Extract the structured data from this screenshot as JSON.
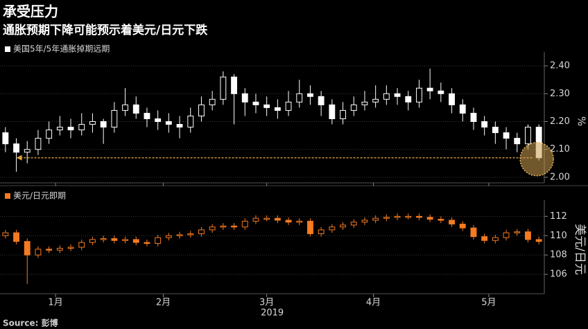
{
  "title": "承受压力",
  "subtitle": "通胀预期下降可能预示着美元/日元下跌",
  "source": "Source: 彭博",
  "chart_data": [
    {
      "type": "candlestick",
      "name": "美国5年/5年通胀掉期远期",
      "color": "#ffffff",
      "ylabel": "%",
      "x": [
        0,
        1,
        2,
        3,
        4,
        5,
        6,
        7,
        8,
        9,
        10,
        11,
        12,
        13,
        14,
        15,
        16,
        17,
        18,
        19,
        20,
        21,
        22,
        23,
        24,
        25,
        26,
        27,
        28,
        29,
        30,
        31,
        32,
        33,
        34,
        35,
        36,
        37,
        38,
        39,
        40,
        41,
        42,
        43,
        44,
        45,
        46,
        47,
        48,
        49
      ],
      "open": [
        2.16,
        2.12,
        2.09,
        2.1,
        2.14,
        2.17,
        2.18,
        2.17,
        2.19,
        2.2,
        2.18,
        2.24,
        2.26,
        2.23,
        2.21,
        2.2,
        2.19,
        2.18,
        2.22,
        2.26,
        2.28,
        2.36,
        2.3,
        2.27,
        2.26,
        2.25,
        2.24,
        2.27,
        2.3,
        2.29,
        2.26,
        2.21,
        2.24,
        2.26,
        2.27,
        2.28,
        2.3,
        2.29,
        2.27,
        2.32,
        2.31,
        2.3,
        2.26,
        2.23,
        2.2,
        2.18,
        2.16,
        2.14,
        2.12,
        2.18
      ],
      "high": [
        2.18,
        2.14,
        2.13,
        2.17,
        2.2,
        2.22,
        2.21,
        2.23,
        2.23,
        2.21,
        2.27,
        2.32,
        2.29,
        2.25,
        2.24,
        2.23,
        2.22,
        2.25,
        2.29,
        2.31,
        2.38,
        2.37,
        2.32,
        2.3,
        2.29,
        2.28,
        2.31,
        2.35,
        2.33,
        2.31,
        2.28,
        2.27,
        2.29,
        2.31,
        2.33,
        2.33,
        2.32,
        2.31,
        2.35,
        2.39,
        2.34,
        2.32,
        2.28,
        2.25,
        2.22,
        2.2,
        2.18,
        2.16,
        2.19,
        2.19
      ],
      "low": [
        2.09,
        2.02,
        2.05,
        2.08,
        2.12,
        2.15,
        2.14,
        2.15,
        2.16,
        2.12,
        2.16,
        2.22,
        2.21,
        2.18,
        2.17,
        2.16,
        2.14,
        2.16,
        2.2,
        2.24,
        2.26,
        2.19,
        2.22,
        2.23,
        2.22,
        2.21,
        2.22,
        2.25,
        2.26,
        2.22,
        2.19,
        2.19,
        2.22,
        2.24,
        2.25,
        2.26,
        2.26,
        2.24,
        2.25,
        2.28,
        2.27,
        2.23,
        2.2,
        2.17,
        2.15,
        2.12,
        2.1,
        2.09,
        2.1,
        2.06
      ],
      "close": [
        2.12,
        2.09,
        2.1,
        2.14,
        2.17,
        2.18,
        2.17,
        2.19,
        2.2,
        2.18,
        2.24,
        2.26,
        2.23,
        2.21,
        2.2,
        2.19,
        2.18,
        2.22,
        2.26,
        2.28,
        2.36,
        2.3,
        2.27,
        2.26,
        2.25,
        2.24,
        2.27,
        2.3,
        2.29,
        2.26,
        2.21,
        2.24,
        2.26,
        2.27,
        2.28,
        2.3,
        2.29,
        2.27,
        2.32,
        2.31,
        2.3,
        2.26,
        2.23,
        2.2,
        2.18,
        2.16,
        2.14,
        2.12,
        2.18,
        2.07
      ],
      "xlim": [
        -0.5,
        49.5
      ],
      "ylim": [
        1.98,
        2.43
      ],
      "yticks": [
        {
          "value": 2.0,
          "label": "2.00"
        },
        {
          "value": 2.1,
          "label": "2.10"
        },
        {
          "value": 2.2,
          "label": "2.20"
        },
        {
          "value": 2.3,
          "label": "2.30"
        },
        {
          "value": 2.4,
          "label": "2.40"
        }
      ],
      "grid": true
    },
    {
      "type": "candlestick",
      "name": "美元/日元即期",
      "color": "#f47b20",
      "ylabel": "美元/日元",
      "xlabel": "2019",
      "x": [
        0,
        1,
        2,
        3,
        4,
        5,
        6,
        7,
        8,
        9,
        10,
        11,
        12,
        13,
        14,
        15,
        16,
        17,
        18,
        19,
        20,
        21,
        22,
        23,
        24,
        25,
        26,
        27,
        28,
        29,
        30,
        31,
        32,
        33,
        34,
        35,
        36,
        37,
        38,
        39,
        40,
        41,
        42,
        43,
        44,
        45,
        46,
        47,
        48,
        49
      ],
      "open": [
        110.0,
        110.3,
        109.4,
        108.0,
        108.6,
        108.5,
        108.7,
        108.8,
        109.3,
        109.6,
        109.7,
        109.5,
        109.6,
        109.3,
        109.2,
        109.8,
        110.0,
        110.1,
        110.2,
        110.6,
        110.9,
        111.0,
        110.9,
        111.5,
        111.8,
        111.8,
        111.6,
        111.4,
        111.5,
        110.2,
        110.6,
        110.9,
        111.1,
        111.4,
        111.6,
        111.8,
        111.9,
        112.0,
        112.0,
        111.9,
        111.7,
        111.6,
        111.2,
        110.8,
        109.9,
        109.5,
        109.8,
        110.3,
        110.4,
        109.6
      ],
      "high": [
        110.6,
        110.6,
        109.7,
        108.9,
        108.9,
        109.0,
        109.1,
        109.6,
        109.9,
        110.0,
        110.0,
        109.9,
        109.9,
        109.6,
        110.1,
        110.3,
        110.4,
        110.5,
        110.9,
        111.2,
        111.3,
        111.3,
        111.8,
        112.1,
        112.1,
        112.1,
        111.9,
        111.8,
        111.8,
        110.9,
        111.2,
        111.4,
        111.7,
        111.9,
        112.1,
        112.2,
        112.3,
        112.3,
        112.3,
        112.2,
        112.0,
        111.9,
        111.5,
        111.1,
        110.2,
        110.1,
        110.6,
        110.7,
        110.7,
        109.9
      ],
      "low": [
        109.7,
        109.1,
        105.0,
        107.7,
        108.2,
        108.2,
        108.4,
        108.5,
        109.0,
        109.3,
        109.2,
        109.2,
        109.0,
        108.9,
        108.9,
        109.5,
        109.7,
        109.8,
        109.9,
        110.3,
        110.6,
        110.6,
        110.6,
        111.2,
        111.5,
        111.3,
        111.1,
        111.1,
        109.9,
        109.9,
        110.3,
        110.6,
        110.8,
        111.1,
        111.3,
        111.5,
        111.6,
        111.7,
        111.6,
        111.4,
        111.3,
        110.9,
        110.5,
        109.6,
        109.2,
        109.2,
        109.5,
        110.0,
        109.3,
        109.1
      ],
      "close": [
        110.3,
        109.4,
        108.0,
        108.6,
        108.5,
        108.7,
        108.8,
        109.3,
        109.6,
        109.7,
        109.5,
        109.6,
        109.3,
        109.2,
        109.8,
        110.0,
        110.1,
        110.2,
        110.6,
        110.9,
        111.0,
        110.9,
        111.5,
        111.8,
        111.8,
        111.6,
        111.4,
        111.5,
        110.2,
        110.6,
        110.9,
        111.1,
        111.4,
        111.6,
        111.8,
        111.9,
        112.0,
        112.0,
        111.9,
        111.7,
        111.6,
        111.2,
        110.8,
        109.9,
        109.5,
        109.8,
        110.3,
        110.4,
        109.6,
        109.4
      ],
      "xlim": [
        -0.5,
        49.5
      ],
      "ylim": [
        104,
        113.1
      ],
      "xticks": [
        {
          "value": 4.6,
          "label": "1月"
        },
        {
          "value": 14.5,
          "label": "2月"
        },
        {
          "value": 24,
          "label": "3月"
        },
        {
          "value": 33.8,
          "label": "4月"
        },
        {
          "value": 44.4,
          "label": "5月"
        }
      ],
      "yticks": [
        106,
        108,
        110,
        112
      ],
      "grid": true
    }
  ]
}
